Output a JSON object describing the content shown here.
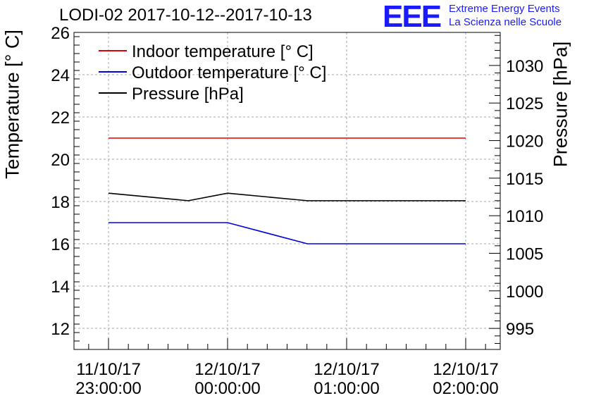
{
  "header": {
    "title": "LODI-02 2017-10-12--2017-10-13",
    "logo_mark": "EEE",
    "logo_line1": "Extreme Energy Events",
    "logo_line2": "La Scienza nelle Scuole"
  },
  "chart_data": {
    "type": "line",
    "title": "LODI-02 2017-10-12--2017-10-13",
    "ylabel": "Temperature [° C]",
    "y2label": "Pressure [hPa]",
    "ylim": [
      11,
      26
    ],
    "y2lim": [
      992.2,
      1034.4
    ],
    "xlim": [
      -0.29,
      3.29
    ],
    "x_ticks": [
      {
        "x": 0,
        "line1": "11/10/17",
        "line2": "23:00:00"
      },
      {
        "x": 1,
        "line1": "12/10/17",
        "line2": "00:00:00"
      },
      {
        "x": 2,
        "line1": "12/10/17",
        "line2": "01:00:00"
      },
      {
        "x": 3,
        "line1": "12/10/17",
        "line2": "02:00:00"
      }
    ],
    "y_ticks": [
      12,
      14,
      16,
      18,
      20,
      22,
      24,
      26
    ],
    "y2_ticks": [
      995,
      1000,
      1005,
      1010,
      1015,
      1020,
      1025,
      1030
    ],
    "grid": true,
    "legend_position": "top-left",
    "series": [
      {
        "name": "Indoor temperature [° C]",
        "axis": "left",
        "color": "#e00000",
        "x": [
          0,
          1,
          2,
          3
        ],
        "values": [
          21,
          21,
          21,
          21
        ]
      },
      {
        "name": "Outdoor temperature [° C]",
        "axis": "left",
        "color": "#0000dd",
        "x": [
          0,
          1,
          1.67,
          2,
          3
        ],
        "values": [
          17,
          17,
          16,
          16,
          16
        ]
      },
      {
        "name": "Pressure [hPa]",
        "axis": "right",
        "color": "#000000",
        "x": [
          0,
          0.67,
          1,
          1.67,
          2,
          3
        ],
        "values": [
          1013,
          1012,
          1013,
          1012,
          1012,
          1012
        ]
      }
    ]
  }
}
